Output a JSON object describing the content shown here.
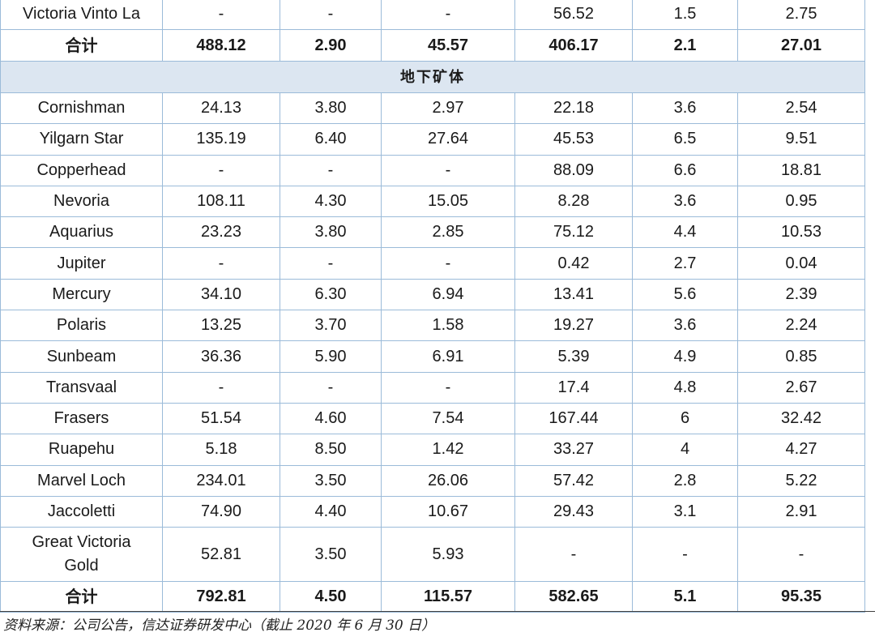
{
  "table": {
    "upper": {
      "rows": [
        {
          "name": "Victoria Vinto La",
          "values": [
            "-",
            "-",
            "-",
            "56.52",
            "1.5",
            "2.75"
          ]
        }
      ],
      "total": {
        "label": "合计",
        "values": [
          "488.12",
          "2.90",
          "45.57",
          "406.17",
          "2.1",
          "27.01"
        ]
      }
    },
    "underground": {
      "label": "地下矿体",
      "rows": [
        {
          "name": "Cornishman",
          "values": [
            "24.13",
            "3.80",
            "2.97",
            "22.18",
            "3.6",
            "2.54"
          ]
        },
        {
          "name": "Yilgarn Star",
          "values": [
            "135.19",
            "6.40",
            "27.64",
            "45.53",
            "6.5",
            "9.51"
          ]
        },
        {
          "name": "Copperhead",
          "values": [
            "-",
            "-",
            "-",
            "88.09",
            "6.6",
            "18.81"
          ]
        },
        {
          "name": "Nevoria",
          "values": [
            "108.11",
            "4.30",
            "15.05",
            "8.28",
            "3.6",
            "0.95"
          ]
        },
        {
          "name": "Aquarius",
          "values": [
            "23.23",
            "3.80",
            "2.85",
            "75.12",
            "4.4",
            "10.53"
          ]
        },
        {
          "name": "Jupiter",
          "values": [
            "-",
            "-",
            "-",
            "0.42",
            "2.7",
            "0.04"
          ]
        },
        {
          "name": "Mercury",
          "values": [
            "34.10",
            "6.30",
            "6.94",
            "13.41",
            "5.6",
            "2.39"
          ]
        },
        {
          "name": "Polaris",
          "values": [
            "13.25",
            "3.70",
            "1.58",
            "19.27",
            "3.6",
            "2.24"
          ]
        },
        {
          "name": "Sunbeam",
          "values": [
            "36.36",
            "5.90",
            "6.91",
            "5.39",
            "4.9",
            "0.85"
          ]
        },
        {
          "name": "Transvaal",
          "values": [
            "-",
            "-",
            "-",
            "17.4",
            "4.8",
            "2.67"
          ]
        },
        {
          "name": "Frasers",
          "values": [
            "51.54",
            "4.60",
            "7.54",
            "167.44",
            "6",
            "32.42"
          ]
        },
        {
          "name": "Ruapehu",
          "values": [
            "5.18",
            "8.50",
            "1.42",
            "33.27",
            "4",
            "4.27"
          ]
        },
        {
          "name": "Marvel Loch",
          "values": [
            "234.01",
            "3.50",
            "26.06",
            "57.42",
            "2.8",
            "5.22"
          ]
        },
        {
          "name": "Jaccoletti",
          "values": [
            "74.90",
            "4.40",
            "10.67",
            "29.43",
            "3.1",
            "2.91"
          ]
        },
        {
          "name": "Great Victoria Gold",
          "values": [
            "52.81",
            "3.50",
            "5.93",
            "-",
            "-",
            "-"
          ]
        }
      ],
      "total": {
        "label": "合计",
        "values": [
          "792.81",
          "4.50",
          "115.57",
          "582.65",
          "5.1",
          "95.35"
        ]
      }
    }
  },
  "footer": {
    "source": "资料来源：公司公告，信达证券研发中心（截止 2020 年 6 月 30 日）"
  },
  "colors": {
    "border": "#9bbbd9",
    "section_background": "#dce6f1",
    "rule": "#404040",
    "text": "#1a1a1a"
  }
}
